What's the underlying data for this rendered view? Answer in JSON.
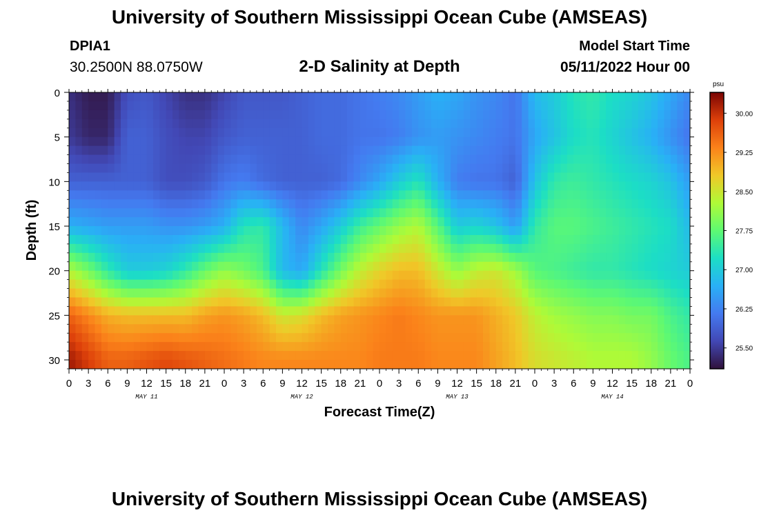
{
  "header": {
    "title": "University of Southern Mississippi Ocean Cube (AMSEAS)",
    "station_id": "DPIA1",
    "coordinates": "30.2500N  88.0750W",
    "subtitle": "2-D Salinity at Depth",
    "model_start_label": "Model Start Time",
    "model_start_value": "05/11/2022 Hour 00"
  },
  "footer": {
    "title": "University of Southern Mississippi Ocean Cube (AMSEAS)"
  },
  "chart_data": {
    "type": "heatmap",
    "title": "2-D Salinity at Depth",
    "xlabel": "Forecast Time(Z)",
    "ylabel": "Depth (ft)",
    "x_range_hours": [
      0,
      96
    ],
    "x_ticks": [
      "0",
      "3",
      "6",
      "9",
      "12",
      "15",
      "18",
      "21",
      "0",
      "3",
      "6",
      "9",
      "12",
      "15",
      "18",
      "21",
      "0",
      "3",
      "6",
      "9",
      "12",
      "15",
      "18",
      "21",
      "0",
      "3",
      "6",
      "9",
      "12",
      "15",
      "18",
      "21",
      "0"
    ],
    "x_day_labels": [
      "MAY 11",
      "MAY 12",
      "MAY 13",
      "MAY 14"
    ],
    "y_range_ft": [
      0,
      31
    ],
    "y_ticks": [
      "0",
      "5",
      "10",
      "15",
      "20",
      "25",
      "30"
    ],
    "colorbar": {
      "unit": "psu",
      "range": [
        25.1,
        30.4
      ],
      "ticks": [
        "30.00",
        "29.25",
        "28.50",
        "27.75",
        "27.00",
        "26.25",
        "25.50"
      ]
    },
    "time_hours": [
      0,
      3,
      6,
      9,
      12,
      15,
      18,
      21,
      24,
      27,
      30,
      33,
      36,
      39,
      42,
      45,
      48,
      51,
      54,
      57,
      60,
      63,
      66,
      69,
      72,
      75,
      78,
      81,
      84,
      87,
      90,
      93,
      96
    ],
    "depth_ft": [
      0,
      5,
      10,
      15,
      20,
      25,
      30
    ],
    "salinity_psu": [
      [
        25.4,
        25.2,
        25.2,
        25.7,
        25.8,
        25.6,
        25.4,
        25.4,
        25.6,
        25.8,
        25.8,
        25.8,
        25.9,
        26.0,
        26.0,
        26.1,
        26.2,
        26.3,
        26.5,
        26.7,
        26.6,
        26.4,
        26.3,
        26.1,
        26.8,
        27.0,
        27.3,
        27.4,
        27.2,
        27.1,
        26.9,
        26.6,
        26.3
      ],
      [
        25.5,
        25.3,
        25.3,
        25.9,
        25.9,
        25.7,
        25.6,
        25.6,
        25.8,
        25.9,
        25.9,
        25.9,
        25.9,
        26.0,
        26.0,
        26.1,
        26.1,
        26.2,
        26.4,
        26.5,
        26.4,
        26.3,
        26.2,
        26.1,
        26.6,
        26.9,
        27.2,
        27.3,
        27.1,
        26.9,
        26.7,
        26.4,
        26.1
      ],
      [
        25.9,
        25.9,
        25.9,
        25.9,
        25.9,
        25.7,
        25.7,
        25.8,
        26.1,
        26.2,
        26.0,
        25.9,
        25.9,
        25.9,
        26.0,
        26.3,
        26.6,
        27.0,
        27.3,
        26.7,
        26.2,
        26.1,
        26.1,
        25.9,
        26.9,
        27.4,
        27.5,
        27.4,
        27.3,
        27.2,
        27.1,
        26.9,
        26.5
      ],
      [
        26.7,
        26.6,
        26.5,
        26.5,
        26.5,
        26.4,
        26.4,
        26.5,
        26.7,
        27.3,
        27.4,
        26.8,
        26.3,
        26.6,
        27.0,
        27.5,
        27.8,
        28.1,
        28.3,
        27.7,
        27.0,
        27.1,
        26.9,
        26.5,
        27.4,
        27.7,
        27.7,
        27.6,
        27.5,
        27.4,
        27.3,
        27.2,
        26.8
      ],
      [
        28.3,
        27.9,
        27.4,
        27.0,
        27.0,
        27.1,
        27.4,
        27.8,
        28.1,
        27.9,
        27.6,
        26.8,
        26.6,
        27.3,
        27.9,
        28.4,
        28.7,
        28.9,
        28.9,
        28.5,
        28.1,
        28.4,
        28.5,
        28.2,
        27.7,
        27.6,
        27.5,
        27.4,
        27.4,
        27.3,
        27.2,
        27.1,
        27.0
      ],
      [
        29.6,
        29.3,
        29.0,
        28.9,
        28.9,
        28.9,
        28.9,
        29.1,
        29.2,
        29.1,
        28.9,
        28.5,
        28.6,
        28.9,
        29.1,
        29.2,
        29.3,
        29.4,
        29.3,
        29.2,
        29.2,
        29.2,
        29.0,
        28.8,
        28.4,
        28.2,
        28.1,
        28.0,
        28.0,
        27.9,
        27.9,
        27.6,
        27.4
      ],
      [
        30.2,
        29.9,
        29.6,
        29.6,
        29.7,
        29.8,
        29.7,
        29.6,
        29.5,
        29.4,
        29.3,
        29.3,
        29.3,
        29.3,
        29.3,
        29.3,
        29.4,
        29.4,
        29.4,
        29.3,
        29.3,
        29.3,
        29.1,
        28.9,
        28.6,
        28.5,
        28.4,
        28.3,
        28.3,
        28.3,
        28.1,
        27.8,
        27.6
      ]
    ]
  }
}
